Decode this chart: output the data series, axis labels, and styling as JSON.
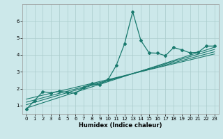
{
  "xlabel": "Humidex (Indice chaleur)",
  "ylabel": "",
  "background_color": "#cce8ea",
  "grid_color": "#aacccc",
  "line_color": "#1a7a6e",
  "xlim": [
    -0.5,
    23.5
  ],
  "ylim": [
    0.5,
    7.0
  ],
  "xticks": [
    0,
    1,
    2,
    3,
    4,
    5,
    6,
    7,
    8,
    9,
    10,
    11,
    12,
    13,
    14,
    15,
    16,
    17,
    18,
    19,
    20,
    21,
    22,
    23
  ],
  "yticks": [
    1,
    2,
    3,
    4,
    5,
    6
  ],
  "series": [
    [
      0,
      0.78
    ],
    [
      1,
      1.3
    ],
    [
      2,
      1.82
    ],
    [
      3,
      1.75
    ],
    [
      4,
      1.85
    ],
    [
      5,
      1.78
    ],
    [
      6,
      1.72
    ],
    [
      7,
      2.05
    ],
    [
      8,
      2.3
    ],
    [
      9,
      2.22
    ],
    [
      10,
      2.55
    ],
    [
      11,
      3.38
    ],
    [
      12,
      4.65
    ],
    [
      13,
      6.55
    ],
    [
      14,
      4.85
    ],
    [
      15,
      4.12
    ],
    [
      16,
      4.1
    ],
    [
      17,
      3.95
    ],
    [
      18,
      4.43
    ],
    [
      19,
      4.3
    ],
    [
      20,
      4.12
    ],
    [
      21,
      4.15
    ],
    [
      22,
      4.52
    ],
    [
      23,
      4.52
    ]
  ],
  "regression_lines": [
    [
      [
        0,
        23
      ],
      [
        0.85,
        4.45
      ]
    ],
    [
      [
        0,
        23
      ],
      [
        1.05,
        4.32
      ]
    ],
    [
      [
        0,
        23
      ],
      [
        1.2,
        4.18
      ]
    ],
    [
      [
        0,
        23
      ],
      [
        1.38,
        4.05
      ]
    ]
  ],
  "figsize": [
    3.2,
    2.0
  ],
  "dpi": 100,
  "tick_labelsize": 5.0,
  "xlabel_fontsize": 6.0,
  "xlabel_fontweight": "bold"
}
